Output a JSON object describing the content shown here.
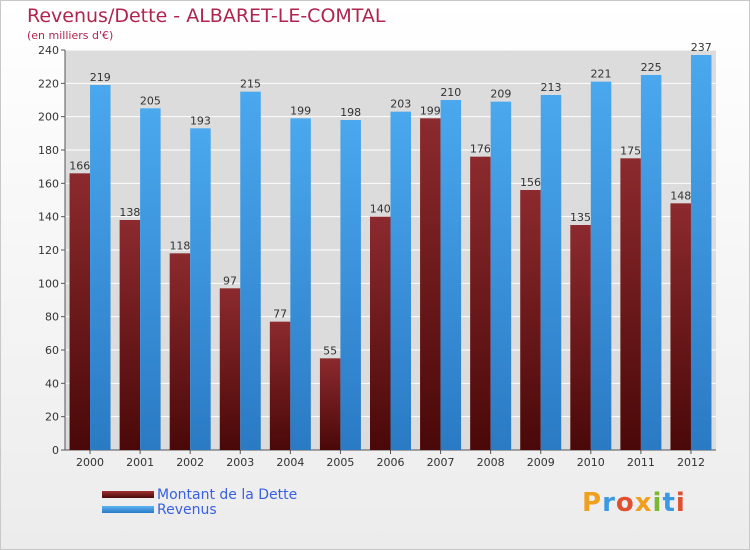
{
  "chart_data": {
    "type": "bar",
    "title": "Revenus/Dette - ALBARET-LE-COMTAL",
    "subtitle": "(en milliers d'€)",
    "categories": [
      "2000",
      "2001",
      "2002",
      "2003",
      "2004",
      "2005",
      "2006",
      "2007",
      "2008",
      "2009",
      "2010",
      "2011",
      "2012"
    ],
    "series": [
      {
        "name": "Montant de la Dette",
        "values": [
          166,
          138,
          118,
          97,
          77,
          55,
          140,
          199,
          176,
          156,
          135,
          175,
          148
        ],
        "color": "#7a1a1e"
      },
      {
        "name": "Revenus",
        "values": [
          219,
          205,
          193,
          215,
          199,
          198,
          203,
          210,
          209,
          213,
          221,
          225,
          237
        ],
        "color": "#3d9ae2"
      }
    ],
    "ylim": [
      0,
      240
    ],
    "yticks": [
      0,
      20,
      40,
      60,
      80,
      100,
      120,
      140,
      160,
      180,
      200,
      220,
      240
    ],
    "grid": true,
    "legend_position": "bottom-left"
  },
  "branding": {
    "logo_letters": [
      "P",
      "r",
      "o",
      "x",
      "i",
      "t",
      "i"
    ],
    "logo_colors": [
      "#f0a020",
      "#3d9ae2",
      "#e05030",
      "#f0a020",
      "#7ab830",
      "#3d9ae2",
      "#e05030"
    ]
  }
}
